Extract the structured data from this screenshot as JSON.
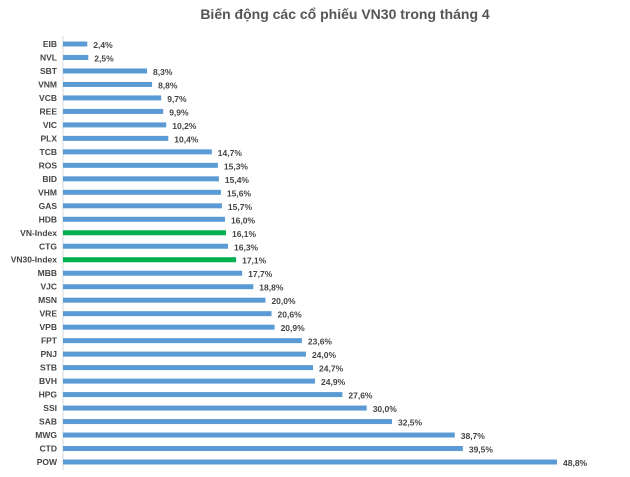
{
  "chart_data": {
    "type": "bar",
    "orientation": "horizontal",
    "title": "Biến động các cổ phiếu VN30 trong tháng 4",
    "xlabel": "",
    "ylabel": "",
    "grid": false,
    "categories": [
      "EIB",
      "NVL",
      "SBT",
      "VNM",
      "VCB",
      "REE",
      "VIC",
      "PLX",
      "TCB",
      "ROS",
      "BID",
      "VHM",
      "GAS",
      "HDB",
      "VN-Index",
      "CTG",
      "VN30-Index",
      "MBB",
      "VJC",
      "MSN",
      "VRE",
      "VPB",
      "FPT",
      "PNJ",
      "STB",
      "BVH",
      "HPG",
      "SSI",
      "SAB",
      "MWG",
      "CTD",
      "POW"
    ],
    "values": [
      2.4,
      2.5,
      8.3,
      8.8,
      9.7,
      9.9,
      10.2,
      10.4,
      14.7,
      15.3,
      15.4,
      15.6,
      15.7,
      16.0,
      16.1,
      16.3,
      17.1,
      17.7,
      18.8,
      20.0,
      20.6,
      20.9,
      23.6,
      24.0,
      24.7,
      24.9,
      27.6,
      30.0,
      32.5,
      38.7,
      39.5,
      48.8
    ],
    "data_labels": [
      "2,4%",
      "2,5%",
      "8,3%",
      "8,8%",
      "9,7%",
      "9,9%",
      "10,2%",
      "10,4%",
      "14,7%",
      "15,3%",
      "15,4%",
      "15,6%",
      "15,7%",
      "16,0%",
      "16,1%",
      "16,3%",
      "17,1%",
      "17,7%",
      "18,8%",
      "20,0%",
      "20,6%",
      "20,9%",
      "23,6%",
      "24,0%",
      "24,7%",
      "24,9%",
      "27,6%",
      "30,0%",
      "32,5%",
      "38,7%",
      "39,5%",
      "48,8%"
    ],
    "highlighted": [
      "VN-Index",
      "VN30-Index"
    ],
    "colors": {
      "bar": "#5b9bd5",
      "highlight": "#00b050"
    },
    "xlim": [
      0,
      50
    ]
  }
}
